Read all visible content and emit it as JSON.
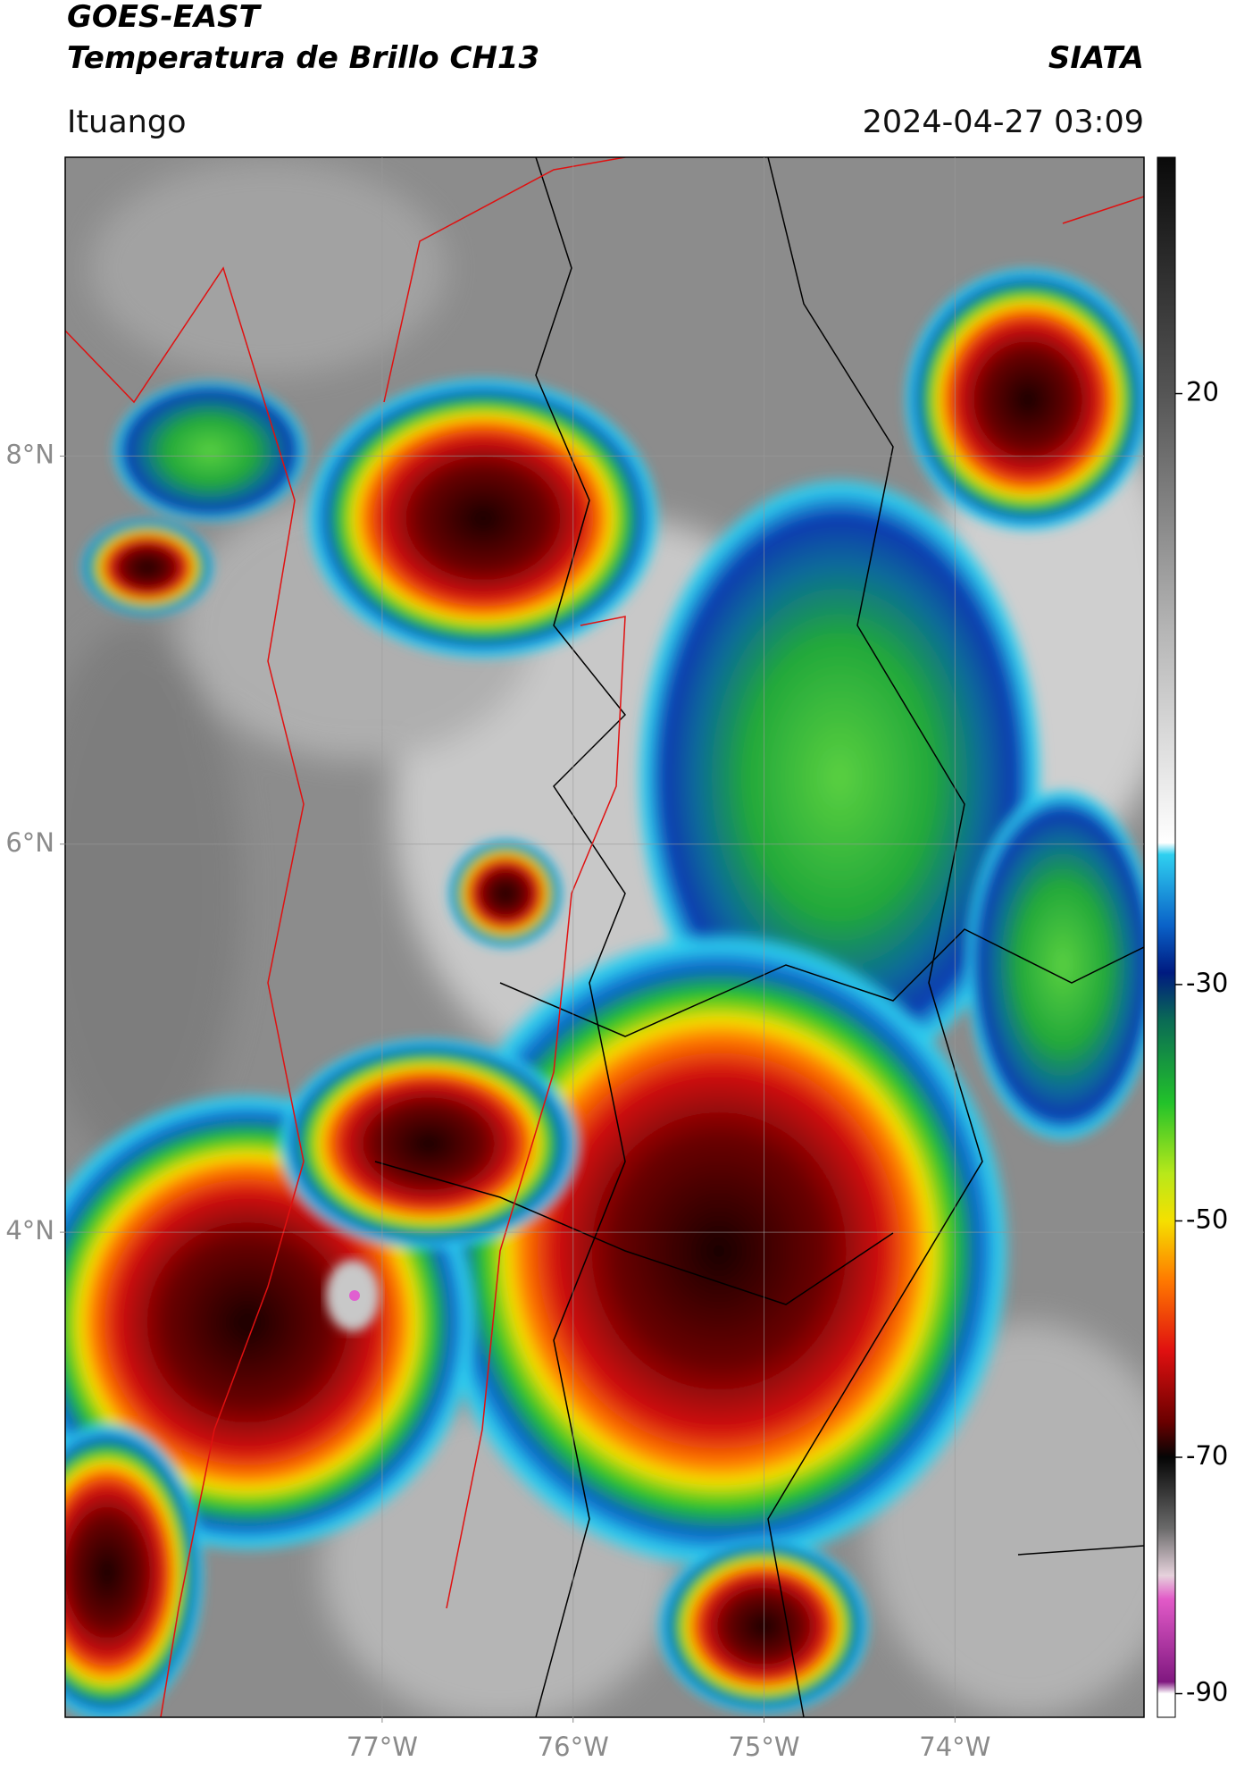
{
  "header": {
    "title": "GOES-EAST",
    "subtitle": "Temperatura de Brillo CH13",
    "source": "SIATA",
    "location": "Ituango",
    "timestamp": "2024-04-27 03:09"
  },
  "map": {
    "xlim": [
      -78.66,
      -73.01
    ],
    "ylim": [
      1.5,
      9.54
    ],
    "xticks": [
      {
        "value": -77,
        "label": "77°W"
      },
      {
        "value": -76,
        "label": "76°W"
      },
      {
        "value": -75,
        "label": "75°W"
      },
      {
        "value": -74,
        "label": "74°W"
      }
    ],
    "yticks": [
      {
        "value": 4,
        "label": "4°N"
      },
      {
        "value": 6,
        "label": "6°N"
      },
      {
        "value": 8,
        "label": "8°N"
      }
    ],
    "grid": true
  },
  "colorbar": {
    "clim": [
      -92,
      40
    ],
    "ticks": [
      20,
      -30,
      -50,
      -70,
      -90
    ],
    "colormap": [
      {
        "value": 40,
        "color": "#0a0a0a"
      },
      {
        "value": 20,
        "color": "#555555"
      },
      {
        "value": 0,
        "color": "#b5b5b5"
      },
      {
        "value": -18,
        "color": "#ffffff"
      },
      {
        "value": -19,
        "color": "#2fd0f0"
      },
      {
        "value": -25,
        "color": "#0a62c8"
      },
      {
        "value": -29,
        "color": "#001a80"
      },
      {
        "value": -33,
        "color": "#0a6a55"
      },
      {
        "value": -40,
        "color": "#22c22a"
      },
      {
        "value": -46,
        "color": "#b8e81a"
      },
      {
        "value": -50,
        "color": "#f5e000"
      },
      {
        "value": -55,
        "color": "#ff7a00"
      },
      {
        "value": -61,
        "color": "#e01010"
      },
      {
        "value": -67,
        "color": "#6a0000"
      },
      {
        "value": -70,
        "color": "#050505"
      },
      {
        "value": -76,
        "color": "#6a6a6a"
      },
      {
        "value": -80,
        "color": "#e6d2dc"
      },
      {
        "value": -82,
        "color": "#e25ac8"
      },
      {
        "value": -89,
        "color": "#801880"
      },
      {
        "value": -90,
        "color": "#ffffff"
      }
    ]
  }
}
